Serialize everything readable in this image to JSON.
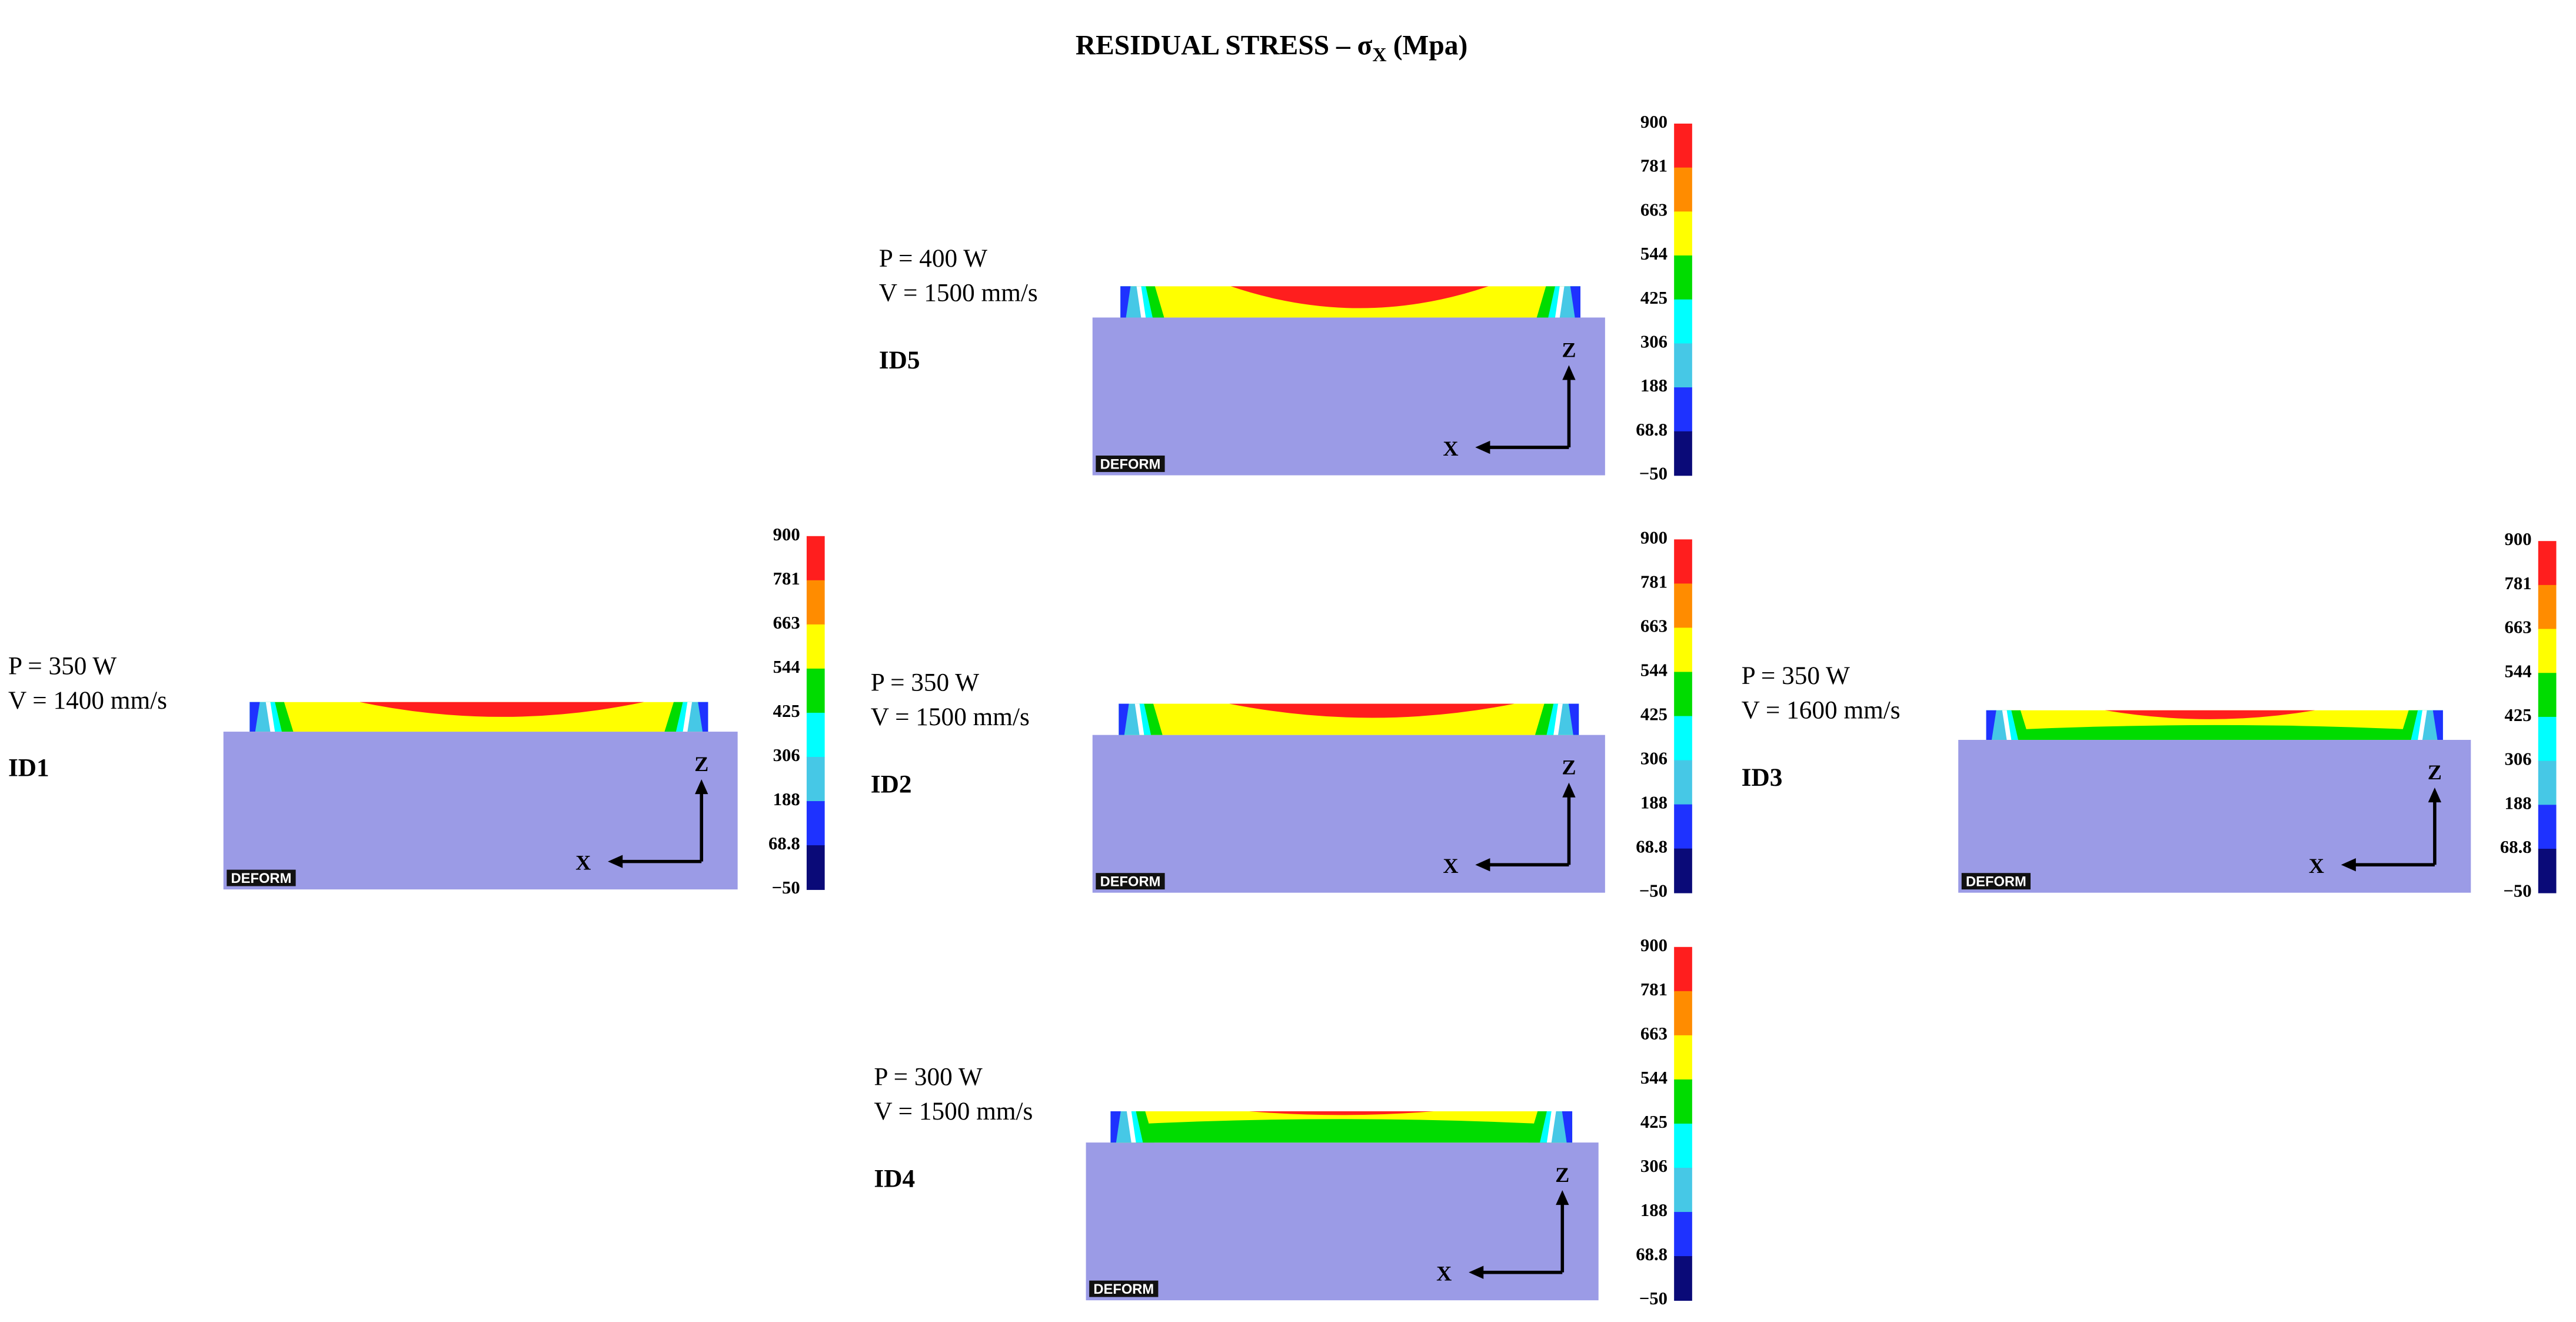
{
  "title": {
    "main": "RESIDUAL STRESS – σ",
    "subscript": "X",
    "unit": "(Mpa)"
  },
  "colorbar": {
    "labels": [
      "900",
      "781",
      "663",
      "544",
      "425",
      "306",
      "188",
      "68.8",
      "−50"
    ],
    "colors": [
      "#ff1e1e",
      "#ff8c00",
      "#ffff00",
      "#00dc00",
      "#00ffff",
      "#46c8e6",
      "#1e32ff",
      "#0a0a78"
    ]
  },
  "axes": {
    "x": "X",
    "z": "Z"
  },
  "logo": "DEFORM",
  "panels": [
    {
      "power": "P = 400 W",
      "speed": "V = 1500 mm/s",
      "id": "ID5"
    },
    {
      "power": "P = 350 W",
      "speed": "V = 1400 mm/s",
      "id": "ID1"
    },
    {
      "power": "P = 350 W",
      "speed": "V = 1500 mm/s",
      "id": "ID2"
    },
    {
      "power": "P = 350 W",
      "speed": "V = 1600 mm/s",
      "id": "ID3"
    },
    {
      "power": "P = 300 W",
      "speed": "V = 1500 mm/s",
      "id": "ID4"
    }
  ]
}
